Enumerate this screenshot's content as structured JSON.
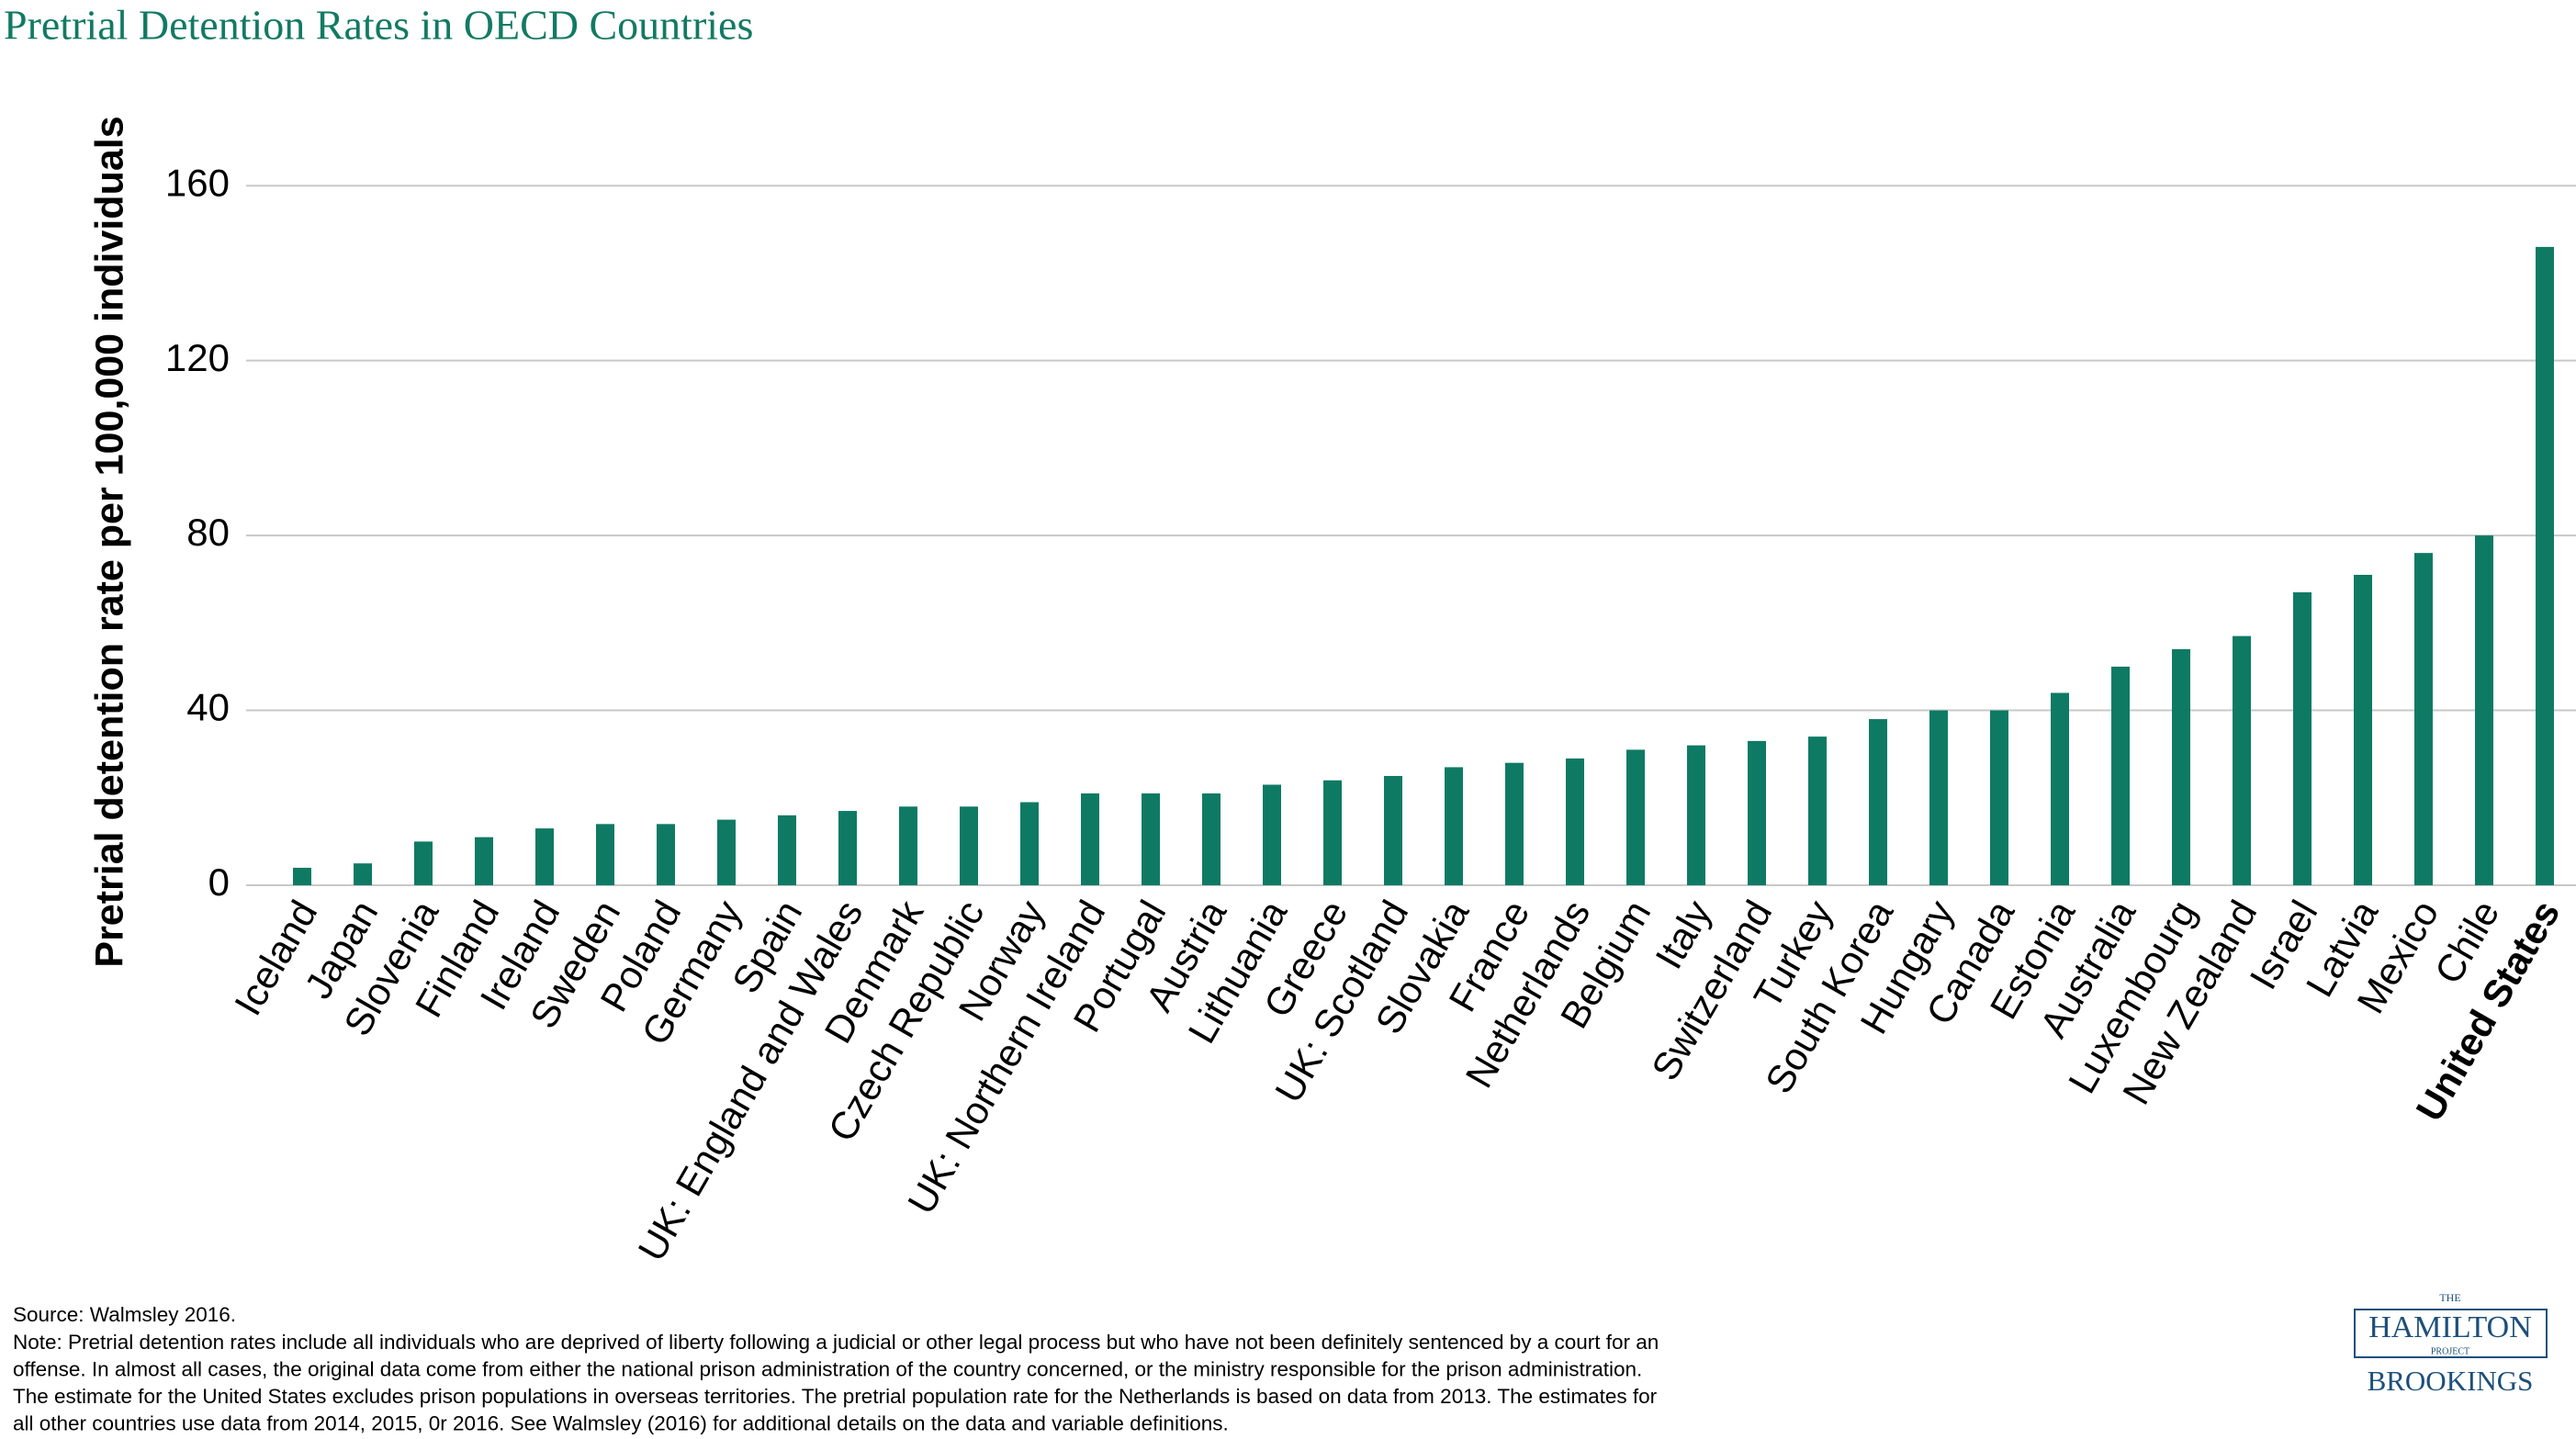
{
  "chart_data": {
    "type": "bar",
    "title": "Pretrial Detention Rates in OECD Countries",
    "y_label": "Pretrial detention rate per 100,000 individuals",
    "categories": [
      "Iceland",
      "Japan",
      "Slovenia",
      "Finland",
      "Ireland",
      "Sweden",
      "Poland",
      "Germany",
      "Spain",
      "UK: England and Wales",
      "Denmark",
      "Czech Republic",
      "Norway",
      "UK: Northern Ireland",
      "Portugal",
      "Austria",
      "Lithuania",
      "Greece",
      "UK: Scotland",
      "Slovakia",
      "France",
      "Netherlands",
      "Belgium",
      "Italy",
      "Switzerland",
      "Turkey",
      "South Korea",
      "Hungary",
      "Canada",
      "Estonia",
      "Australia",
      "Luxembourg",
      "New Zealand",
      "Israel",
      "Latvia",
      "Mexico",
      "Chile",
      "United States"
    ],
    "values": [
      4,
      5,
      10,
      11,
      13,
      14,
      14,
      15,
      16,
      17,
      18,
      18,
      19,
      21,
      21,
      21,
      23,
      24,
      25,
      27,
      28,
      29,
      31,
      32,
      33,
      34,
      38,
      40,
      40,
      44,
      50,
      54,
      57,
      67,
      71,
      76,
      80,
      146
    ],
    "color": "#0e7a64",
    "ylim": [
      0,
      180
    ],
    "yticks": [
      0,
      40,
      80,
      120,
      160
    ],
    "grid": true,
    "source": "Source: Walmsley 2016.",
    "notes": [
      "Note: Pretrial detention rates include all individuals who are deprived of liberty following a judicial or other legal process but who have not been definitely sentenced by a court for an",
      "offense. In almost all cases, the original data come from either the national prison administration of the country concerned, or the ministry responsible for the prison administration.",
      "The estimate for the United States excludes prison populations in overseas territories. The pretrial population rate for the Netherlands is based on data from 2013. The estimates for",
      "all other countries use data from 2014, 2015, 0r 2016. See Walmsley (2016) for additional details on the data and variable definitions."
    ]
  },
  "logo": {
    "top": "THE",
    "name": "HAMILTON",
    "sub": "PROJECT",
    "org": "BROOKINGS"
  }
}
